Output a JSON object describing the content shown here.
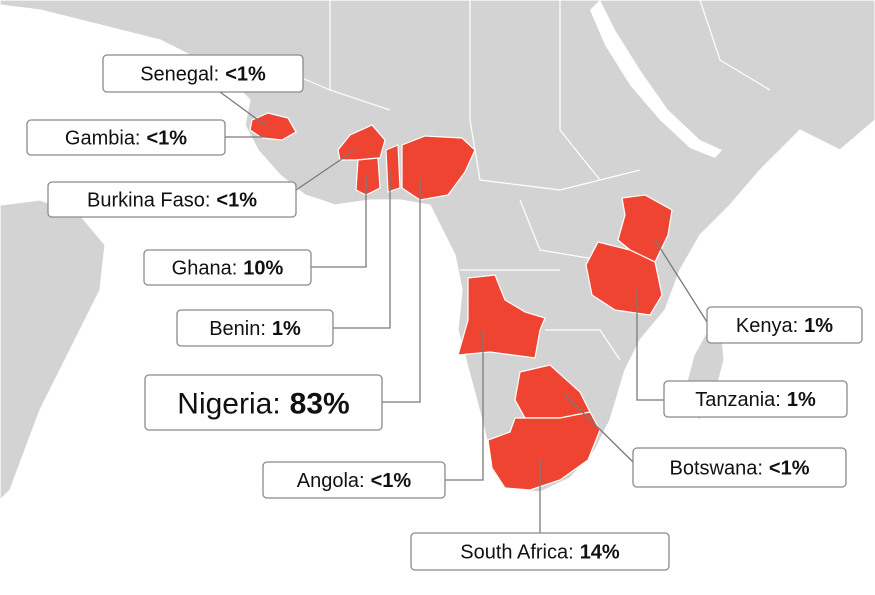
{
  "labels": [
    {
      "country": "Senegal:",
      "value": "<1%"
    },
    {
      "country": "Gambia:",
      "value": "<1%"
    },
    {
      "country": "Burkina Faso:",
      "value": "<1%"
    },
    {
      "country": "Ghana:",
      "value": "10%"
    },
    {
      "country": "Benin:",
      "value": "1%"
    },
    {
      "country": "Nigeria:",
      "value": "83%"
    },
    {
      "country": "Angola:",
      "value": "<1%"
    },
    {
      "country": "South Africa:",
      "value": "14%"
    },
    {
      "country": "Botswana:",
      "value": "<1%"
    },
    {
      "country": "Tanzania:",
      "value": "1%"
    },
    {
      "country": "Kenya:",
      "value": "1%"
    }
  ]
}
